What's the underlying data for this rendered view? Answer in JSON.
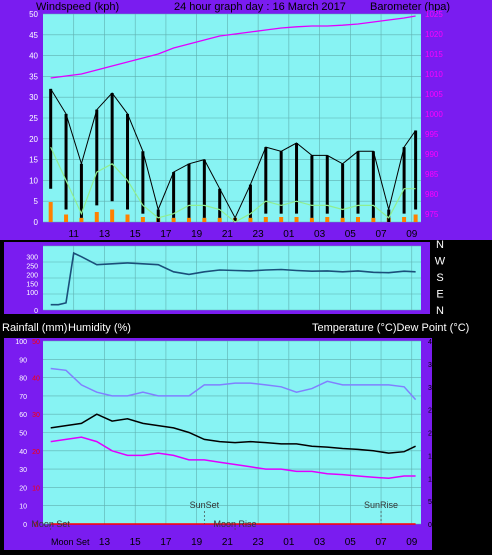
{
  "colors": {
    "purple_bg": "#7a1cf0",
    "plot_bg": "#87f3f3",
    "grid": "#5fb0b0",
    "wind": "#000000",
    "gust": "#90ee90",
    "orange": "#ff8000",
    "barometer": "#e000ff",
    "direction": "#1a4f7a",
    "temperature": "#000000",
    "humidity": "#8080ff",
    "dew": "#e000ff",
    "rain": "#ff0000",
    "axis_text_white": "#ffffff",
    "axis_text_black": "#000000",
    "axis_text_pink": "#ff00ff",
    "axis_text_red": "#ff0000"
  },
  "chart_data": [
    {
      "type": "line",
      "title": "24 hour graph day : 16 March 2017",
      "ylabel_left": "Windspeed (kph)",
      "ylabel_right": "Barometer (hpa)",
      "ylim_left": [
        0,
        50
      ],
      "ylim_right": [
        973,
        1025
      ],
      "left_ticks": [
        "0",
        "5",
        "10",
        "15",
        "20",
        "25",
        "30",
        "35",
        "40",
        "45",
        "50"
      ],
      "right_ticks": [
        "975",
        "980",
        "985",
        "990",
        "995",
        "1000",
        "1005",
        "1010",
        "1015",
        "1020",
        "1025"
      ],
      "x_ticks": [
        "11",
        "13",
        "15",
        "17",
        "19",
        "21",
        "23",
        "01",
        "03",
        "05",
        "07",
        "09"
      ],
      "x": [
        "09:30",
        "10:30",
        "11:30",
        "12:30",
        "13:30",
        "14:30",
        "15:30",
        "16:30",
        "17:30",
        "18:30",
        "19:30",
        "20:30",
        "21:30",
        "22:30",
        "23:30",
        "00:30",
        "01:30",
        "02:30",
        "03:30",
        "04:30",
        "05:30",
        "06:30",
        "07:30",
        "08:30",
        "09:15"
      ],
      "series": [
        {
          "role": "wind_max",
          "values": [
            32,
            26,
            14,
            27,
            31,
            26,
            17,
            3,
            12,
            14,
            15,
            8,
            1,
            9,
            18,
            17,
            19,
            16,
            16,
            14,
            17,
            17,
            3,
            18,
            22
          ]
        },
        {
          "role": "wind_min",
          "values": [
            8,
            3,
            1,
            4,
            5,
            3,
            2,
            0,
            1,
            1,
            1,
            1,
            0,
            1,
            2,
            2,
            2,
            1,
            2,
            1,
            2,
            1,
            0,
            2,
            3
          ]
        },
        {
          "role": "gust",
          "values": [
            18,
            10,
            2,
            12,
            14,
            10,
            4,
            1,
            2,
            4,
            4,
            3,
            0,
            2,
            5,
            4,
            5,
            4,
            4,
            3,
            4,
            4,
            1,
            8,
            8
          ]
        },
        {
          "role": "barometer",
          "values": [
            1009,
            1009.5,
            1010,
            1011,
            1012,
            1013,
            1014,
            1015,
            1016.5,
            1017.5,
            1018.5,
            1019.5,
            1020,
            1020.5,
            1021,
            1021.5,
            1021.8,
            1022,
            1022,
            1022.2,
            1022.5,
            1023,
            1023.5,
            1024,
            1024.5
          ]
        }
      ]
    },
    {
      "type": "line",
      "ylim": [
        0,
        360
      ],
      "left_ticks": [
        "0",
        "100",
        "150",
        "200",
        "250",
        "300"
      ],
      "right_labels": [
        "N",
        "W",
        "S",
        "E",
        "N"
      ],
      "x_ticks": [
        "11",
        "13",
        "15",
        "17",
        "19",
        "21",
        "23",
        "01",
        "03",
        "05",
        "07",
        "09"
      ],
      "x": [
        "09:30",
        "10:00",
        "10:30",
        "11:00",
        "11:30",
        "12:30",
        "13:30",
        "14:30",
        "15:30",
        "16:30",
        "17:30",
        "18:30",
        "19:30",
        "20:30",
        "21:30",
        "22:30",
        "23:30",
        "00:30",
        "01:30",
        "02:30",
        "03:30",
        "04:30",
        "05:30",
        "06:30",
        "07:30",
        "08:30",
        "09:15"
      ],
      "series": [
        {
          "role": "wind_direction",
          "values": [
            30,
            30,
            40,
            320,
            300,
            255,
            260,
            265,
            260,
            255,
            215,
            200,
            215,
            225,
            222,
            220,
            225,
            228,
            222,
            218,
            220,
            215,
            220,
            212,
            210,
            218,
            215
          ]
        }
      ]
    },
    {
      "type": "line",
      "ylabel_left_1": "Rainfall (mm)",
      "ylabel_left_2": "Humidity (%)",
      "ylabel_right": "Temperature (°C)Dew Point (°C)",
      "ylim_humidity": [
        0,
        100
      ],
      "ylim_temperature": [
        0,
        40
      ],
      "ylim_rain": [
        0,
        50
      ],
      "humidity_ticks": [
        "0",
        "10",
        "20",
        "30",
        "40",
        "50",
        "60",
        "70",
        "80",
        "90",
        "100"
      ],
      "rain_ticks": [
        "0",
        "10",
        "20",
        "30",
        "40",
        "50"
      ],
      "temperature_ticks": [
        "0",
        "5",
        "10",
        "15",
        "20",
        "25",
        "30",
        "35",
        "40"
      ],
      "x_ticks": [
        "13",
        "15",
        "17",
        "19",
        "21",
        "23",
        "01",
        "03",
        "05",
        "07",
        "09"
      ],
      "x_first_label": "Moon Set",
      "x": [
        "09:30",
        "10:30",
        "11:30",
        "12:30",
        "13:30",
        "14:30",
        "15:30",
        "16:30",
        "17:30",
        "18:30",
        "19:30",
        "20:30",
        "21:30",
        "22:30",
        "23:30",
        "00:30",
        "01:30",
        "02:30",
        "03:30",
        "04:30",
        "05:30",
        "06:30",
        "07:30",
        "08:30",
        "09:15"
      ],
      "series": [
        {
          "role": "humidity",
          "values": [
            85,
            84,
            76,
            72,
            70,
            70,
            72,
            70,
            70,
            70,
            76,
            76,
            77,
            77,
            76,
            75,
            72,
            74,
            78,
            76,
            76,
            76,
            76,
            75,
            68
          ]
        },
        {
          "role": "temperature",
          "values": [
            21,
            21.5,
            22,
            24,
            22.5,
            23,
            22,
            21.5,
            21,
            20,
            18.5,
            18,
            17.8,
            18,
            17.8,
            17.5,
            17.5,
            17,
            16.8,
            16.5,
            16.3,
            16,
            15.5,
            15.8,
            17
          ]
        },
        {
          "role": "dew_point",
          "values": [
            18,
            18.5,
            19,
            18,
            16,
            15,
            15,
            15.5,
            15,
            14,
            14,
            13.5,
            13,
            12.5,
            12,
            12,
            11.5,
            11.5,
            11,
            10.8,
            10.5,
            10.2,
            10,
            10.5,
            10.5
          ]
        },
        {
          "role": "rainfall",
          "values": [
            0,
            0,
            0,
            0,
            0,
            0,
            0,
            0,
            0,
            0,
            0,
            0,
            0,
            0,
            0,
            0,
            0,
            0,
            0,
            0,
            0,
            0,
            0,
            0,
            0
          ]
        }
      ],
      "annotations": [
        {
          "text": "Moon Set",
          "x": "09:30",
          "placement": "bottom"
        },
        {
          "text": "SunSet",
          "x": "19:30",
          "placement": "mid-low"
        },
        {
          "text": "Moon Rise",
          "x": "21:30",
          "placement": "bottom"
        },
        {
          "text": "SunRise",
          "x": "07:00",
          "placement": "mid-low"
        }
      ]
    }
  ]
}
